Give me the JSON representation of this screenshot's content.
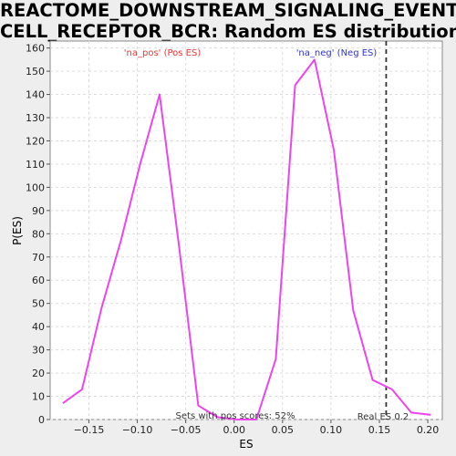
{
  "chart_data": {
    "type": "line",
    "title_line1": "REACTOME_DOWNSTREAM_SIGNALING_EVENTS_OF_B_",
    "title_line2": "CELL_RECEPTOR_BCR: Random ES distribution",
    "xlabel": "ES",
    "ylabel": "P(ES)",
    "xlim": [
      -0.19,
      0.215
    ],
    "ylim": [
      0,
      163
    ],
    "x_ticks": [
      -0.15,
      -0.1,
      -0.05,
      0.0,
      0.05,
      0.1,
      0.15,
      0.2
    ],
    "x_tick_labels": [
      "−0.15",
      "−0.10",
      "−0.05",
      "0.00",
      "0.05",
      "0.10",
      "0.15",
      "0.20"
    ],
    "y_ticks": [
      0,
      10,
      20,
      30,
      40,
      50,
      60,
      70,
      80,
      90,
      100,
      110,
      120,
      130,
      140,
      150,
      160
    ],
    "grid": true,
    "series": [
      {
        "color": "#ee44ee",
        "x": [
          -0.177,
          -0.157,
          -0.137,
          -0.117,
          -0.097,
          -0.077,
          -0.057,
          -0.037,
          -0.017,
          0.003,
          0.023,
          0.043,
          0.063,
          0.083,
          0.103,
          0.123,
          0.143,
          0.163,
          0.183,
          0.203
        ],
        "y": [
          7,
          13,
          48,
          77,
          110,
          140,
          75,
          6,
          1,
          0,
          0,
          26,
          144,
          155,
          116,
          47,
          17,
          13,
          3,
          2
        ]
      }
    ],
    "annotations": {
      "pos_label": "'na_pos' (Pos ES)",
      "pos_color": "#ee3333",
      "neg_label": "'na_neg' (Neg ES)",
      "neg_color": "#3333cc",
      "sets_text": "Sets with pos scores: 52%",
      "real_es_text": "Real ES 0.2",
      "real_es_x": 0.157
    }
  }
}
